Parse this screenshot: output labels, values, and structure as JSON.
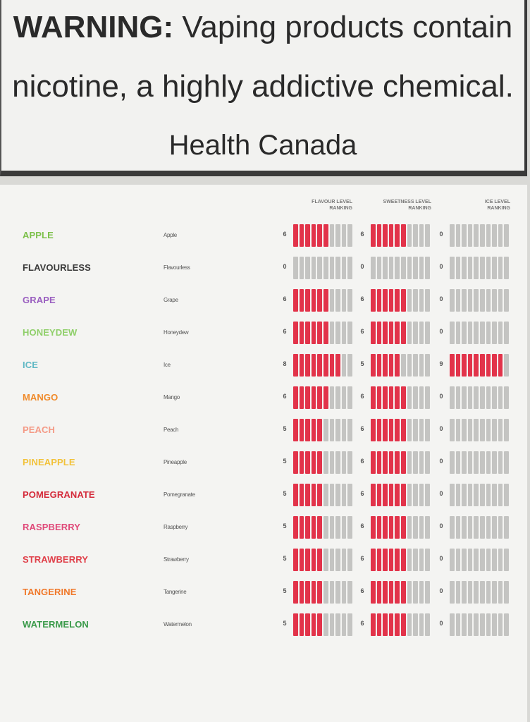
{
  "warning": {
    "label": "WARNING:",
    "line1_rest": "Vaping products contain",
    "line2": "nicotine, a highly addictive chemical.",
    "source": "Health Canada"
  },
  "headers": {
    "flavour": [
      "FLAVOUR LEVEL",
      "RANKING"
    ],
    "sweetness": [
      "SWEETNESS LEVEL",
      "RANKING"
    ],
    "ice": [
      "ICE LEVEL",
      "RANKING"
    ]
  },
  "colors": {
    "bar_on": "#e2334a",
    "bar_off": "#c4c4c2"
  },
  "max_level": 10,
  "rows": [
    {
      "name": "APPLE",
      "sub": "Apple",
      "color": "#7cc04a",
      "flavour": 6,
      "sweetness": 6,
      "ice": 0
    },
    {
      "name": "FLAVOURLESS",
      "sub": "Flavourless",
      "color": "#3a3a3a",
      "flavour": 0,
      "sweetness": 0,
      "ice": 0
    },
    {
      "name": "GRAPE",
      "sub": "Grape",
      "color": "#9a5fc0",
      "flavour": 6,
      "sweetness": 6,
      "ice": 0
    },
    {
      "name": "HONEYDEW",
      "sub": "Honeydew",
      "color": "#8fcf6a",
      "flavour": 6,
      "sweetness": 6,
      "ice": 0
    },
    {
      "name": "ICE",
      "sub": "Ice",
      "color": "#5fb8c4",
      "flavour": 8,
      "sweetness": 5,
      "ice": 9
    },
    {
      "name": "MANGO",
      "sub": "Mango",
      "color": "#f08a2a",
      "flavour": 6,
      "sweetness": 6,
      "ice": 0
    },
    {
      "name": "PEACH",
      "sub": "Peach",
      "color": "#f49a86",
      "flavour": 5,
      "sweetness": 6,
      "ice": 0
    },
    {
      "name": "PINEAPPLE",
      "sub": "Pineapple",
      "color": "#f2c23a",
      "flavour": 5,
      "sweetness": 6,
      "ice": 0
    },
    {
      "name": "POMEGRANATE",
      "sub": "Pomegranate",
      "color": "#d42a3a",
      "flavour": 5,
      "sweetness": 6,
      "ice": 0
    },
    {
      "name": "RASPBERRY",
      "sub": "Raspberry",
      "color": "#e04a7a",
      "flavour": 5,
      "sweetness": 6,
      "ice": 0
    },
    {
      "name": "STRAWBERRY",
      "sub": "Strawberry",
      "color": "#e0404a",
      "flavour": 5,
      "sweetness": 6,
      "ice": 0
    },
    {
      "name": "TANGERINE",
      "sub": "Tangerine",
      "color": "#f0782a",
      "flavour": 5,
      "sweetness": 6,
      "ice": 0
    },
    {
      "name": "WATERMELON",
      "sub": "Watermelon",
      "color": "#3a9a4a",
      "flavour": 5,
      "sweetness": 6,
      "ice": 0
    }
  ]
}
